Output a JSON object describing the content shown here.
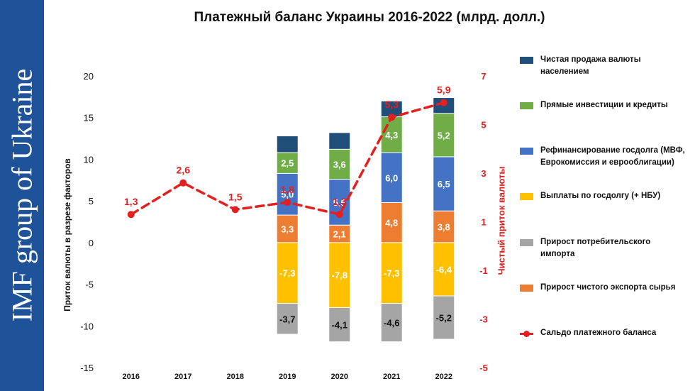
{
  "side_banner": "IMF group of Ukraine",
  "colors": {
    "net_fx_sale": "#1F4E79",
    "fdi_loans": "#70AD47",
    "refinancing": "#4472C4",
    "debt_payments": "#FFC000",
    "consumer_import": "#A5A5A5",
    "raw_export": "#ED7D31",
    "balance": "#E41F1F",
    "side_band": "#1F5399"
  },
  "chart_data": {
    "type": "bar",
    "stacked": true,
    "title": "Платежный баланс Украины 2016-2022 (млрд. долл.)",
    "ylabel": "Приток валюты в разрезе факторов",
    "y2label": "Чистый приток валюты",
    "categories": [
      "2016",
      "2017",
      "2018",
      "2019",
      "2020",
      "2021",
      "2022"
    ],
    "ylim": [
      -15,
      20
    ],
    "yticks": [
      "20",
      "15",
      "10",
      "5",
      "0",
      "-5",
      "-10",
      "-15"
    ],
    "y2lim": [
      -5,
      7
    ],
    "y2ticks": [
      "7",
      "5",
      "3",
      "1",
      "-1",
      "-3",
      "-5"
    ],
    "grid": false,
    "legend_position": "right",
    "series": [
      {
        "key": "debt_payments",
        "name": "Выплаты по госдолгу (+ НБУ)",
        "values": [
          null,
          null,
          null,
          -7.3,
          -7.8,
          -7.3,
          -6.4
        ],
        "labels": [
          "",
          "",
          "",
          "-7,3",
          "-7,8",
          "-7,3",
          "-6,4"
        ]
      },
      {
        "key": "consumer_import",
        "name": "Прирост потребительского импорта",
        "values": [
          null,
          null,
          null,
          -3.7,
          -4.1,
          -4.6,
          -5.2
        ],
        "labels": [
          "",
          "",
          "",
          "-3,7",
          "-4,1",
          "-4,6",
          "-5,2"
        ]
      },
      {
        "key": "raw_export",
        "name": "Прирост чистого экспорта сырья",
        "values": [
          null,
          null,
          null,
          3.3,
          2.1,
          4.8,
          3.8
        ],
        "labels": [
          "",
          "",
          "",
          "3,3",
          "2,1",
          "4,8",
          "3,8"
        ]
      },
      {
        "key": "refinancing",
        "name": "Рефинансирование госдолга (МВФ, Еврокомиссия и еврооблигации)",
        "values": [
          null,
          null,
          null,
          5.0,
          5.5,
          6.0,
          6.5
        ],
        "labels": [
          "",
          "",
          "",
          "5,0",
          "5,5",
          "6,0",
          "6,5"
        ]
      },
      {
        "key": "fdi_loans",
        "name": "Прямые инвестиции и кредиты",
        "values": [
          null,
          null,
          null,
          2.5,
          3.6,
          4.3,
          5.2
        ],
        "labels": [
          "",
          "",
          "",
          "2,5",
          "3,6",
          "4,3",
          "5,2"
        ]
      },
      {
        "key": "net_fx_sale",
        "name": "Чистая продажа валюты населением",
        "values": [
          null,
          null,
          null,
          2.0,
          2.0,
          1.9,
          1.9
        ],
        "labels": [
          "",
          "",
          "",
          "",
          "",
          "",
          ""
        ]
      }
    ],
    "line": {
      "key": "balance",
      "name": "Сальдо платежного баланса",
      "axis": "right",
      "values": [
        1.3,
        2.6,
        1.5,
        1.8,
        1.3,
        5.3,
        5.9
      ],
      "labels": [
        "1,3",
        "2,6",
        "1,5",
        "1,8",
        "1,3",
        "5,3",
        "5,9"
      ]
    }
  },
  "legend_order": [
    "net_fx_sale",
    "fdi_loans",
    "refinancing",
    "debt_payments",
    "consumer_import",
    "raw_export",
    "balance"
  ]
}
